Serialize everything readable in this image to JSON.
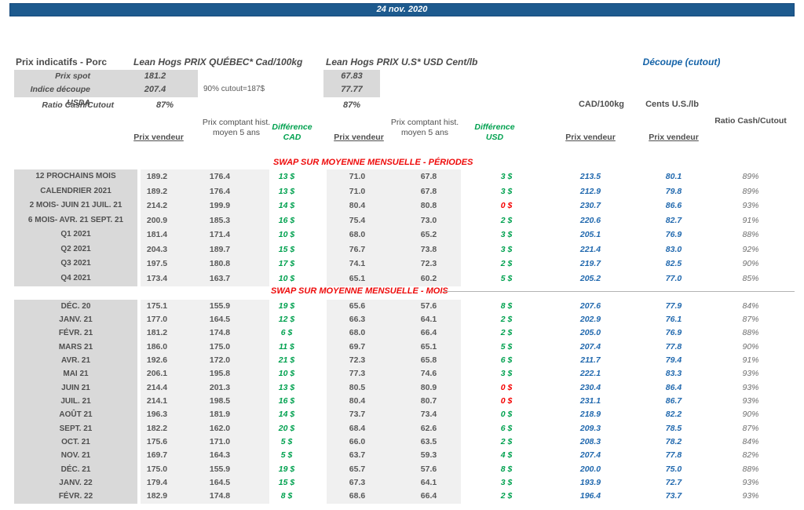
{
  "banner": {
    "date": "24 nov. 2020"
  },
  "top": {
    "title": "Prix indicatifs - Porc",
    "quebec_header": "Lean Hogs PRIX QUÉBEC* Cad/100kg",
    "us_header": "Lean Hogs PRIX U.S* USD Cent/lb",
    "cutout_header": "Découpe (cutout)",
    "spot_label": "Prix spot",
    "spot_cad": "181.2",
    "spot_usd": "67.83",
    "indice_label": "Indice découpe USDA",
    "indice_cad": "207.4",
    "indice_usd": "77.77",
    "ratio_label": "Ratio Cash/Cutout",
    "ratio_cad": "87%",
    "ratio_usd": "87%",
    "cutout_note": "90% cutout=187$",
    "unit_cad": "CAD/100kg",
    "unit_us": "Cents U.S./lb"
  },
  "columns": {
    "prix_vendeur": "Prix vendeur",
    "prix_comptant": "Prix comptant hist. moyen 5 ans",
    "diff_cad": "Différence CAD",
    "diff_usd": "Différence USD",
    "ratio": "Ratio Cash/Cutout"
  },
  "colors": {
    "banner_bg": "#1d5a8e",
    "green_diff": "#00a14f",
    "red_diff": "#f40000",
    "blue_cutout": "#2068ae",
    "red_title": "#ee0a0a",
    "label_column_bg": "#d9d9d9",
    "data_band_bg": "#f0f0f0"
  },
  "sections": [
    {
      "title": "SWAP SUR MOYENNE MENSUELLE - PÉRIODES",
      "rows": [
        {
          "label": "12 PROCHAINS MOIS",
          "cad_v": "189.2",
          "cad_h": "176.4",
          "dc": "13 $",
          "dc_neg": false,
          "usd_v": "71.0",
          "usd_h": "67.8",
          "du": "3 $",
          "du_neg": false,
          "cut_cad": "213.5",
          "cut_us": "80.1",
          "ratio": "89%"
        },
        {
          "label": "CALENDRIER 2021",
          "cad_v": "189.2",
          "cad_h": "176.4",
          "dc": "13 $",
          "dc_neg": false,
          "usd_v": "71.0",
          "usd_h": "67.8",
          "du": "3 $",
          "du_neg": false,
          "cut_cad": "212.9",
          "cut_us": "79.8",
          "ratio": "89%"
        },
        {
          "label": "2 MOIS- JUIN 21 JUIL. 21",
          "cad_v": "214.2",
          "cad_h": "199.9",
          "dc": "14 $",
          "dc_neg": false,
          "usd_v": "80.4",
          "usd_h": "80.8",
          "du": "0 $",
          "du_neg": true,
          "cut_cad": "230.7",
          "cut_us": "86.6",
          "ratio": "93%"
        },
        {
          "label": "6 MOIS- AVR. 21 SEPT. 21",
          "cad_v": "200.9",
          "cad_h": "185.3",
          "dc": "16 $",
          "dc_neg": false,
          "usd_v": "75.4",
          "usd_h": "73.0",
          "du": "2 $",
          "du_neg": false,
          "cut_cad": "220.6",
          "cut_us": "82.7",
          "ratio": "91%"
        },
        {
          "label": "Q1 2021",
          "cad_v": "181.4",
          "cad_h": "171.4",
          "dc": "10 $",
          "dc_neg": false,
          "usd_v": "68.0",
          "usd_h": "65.2",
          "du": "3 $",
          "du_neg": false,
          "cut_cad": "205.1",
          "cut_us": "76.9",
          "ratio": "88%"
        },
        {
          "label": "Q2 2021",
          "cad_v": "204.3",
          "cad_h": "189.7",
          "dc": "15 $",
          "dc_neg": false,
          "usd_v": "76.7",
          "usd_h": "73.8",
          "du": "3 $",
          "du_neg": false,
          "cut_cad": "221.4",
          "cut_us": "83.0",
          "ratio": "92%"
        },
        {
          "label": "Q3 2021",
          "cad_v": "197.5",
          "cad_h": "180.8",
          "dc": "17 $",
          "dc_neg": false,
          "usd_v": "74.1",
          "usd_h": "72.3",
          "du": "2 $",
          "du_neg": false,
          "cut_cad": "219.7",
          "cut_us": "82.5",
          "ratio": "90%"
        },
        {
          "label": "Q4 2021",
          "cad_v": "173.4",
          "cad_h": "163.7",
          "dc": "10 $",
          "dc_neg": false,
          "usd_v": "65.1",
          "usd_h": "60.2",
          "du": "5 $",
          "du_neg": false,
          "cut_cad": "205.2",
          "cut_us": "77.0",
          "ratio": "85%"
        }
      ]
    },
    {
      "title": "SWAP SUR MOYENNE MENSUELLE - MOIS",
      "rows": [
        {
          "label": "DÉC. 20",
          "cad_v": "175.1",
          "cad_h": "155.9",
          "dc": "19 $",
          "dc_neg": false,
          "usd_v": "65.6",
          "usd_h": "57.6",
          "du": "8 $",
          "du_neg": false,
          "cut_cad": "207.6",
          "cut_us": "77.9",
          "ratio": "84%"
        },
        {
          "label": "JANV. 21",
          "cad_v": "177.0",
          "cad_h": "164.5",
          "dc": "12 $",
          "dc_neg": false,
          "usd_v": "66.3",
          "usd_h": "64.1",
          "du": "2 $",
          "du_neg": false,
          "cut_cad": "202.9",
          "cut_us": "76.1",
          "ratio": "87%"
        },
        {
          "label": "FÉVR. 21",
          "cad_v": "181.2",
          "cad_h": "174.8",
          "dc": "6 $",
          "dc_neg": false,
          "usd_v": "68.0",
          "usd_h": "66.4",
          "du": "2 $",
          "du_neg": false,
          "cut_cad": "205.0",
          "cut_us": "76.9",
          "ratio": "88%"
        },
        {
          "label": "MARS 21",
          "cad_v": "186.0",
          "cad_h": "175.0",
          "dc": "11 $",
          "dc_neg": false,
          "usd_v": "69.7",
          "usd_h": "65.1",
          "du": "5 $",
          "du_neg": false,
          "cut_cad": "207.4",
          "cut_us": "77.8",
          "ratio": "90%"
        },
        {
          "label": "AVR. 21",
          "cad_v": "192.6",
          "cad_h": "172.0",
          "dc": "21 $",
          "dc_neg": false,
          "usd_v": "72.3",
          "usd_h": "65.8",
          "du": "6 $",
          "du_neg": false,
          "cut_cad": "211.7",
          "cut_us": "79.4",
          "ratio": "91%"
        },
        {
          "label": "MAI 21",
          "cad_v": "206.1",
          "cad_h": "195.8",
          "dc": "10 $",
          "dc_neg": false,
          "usd_v": "77.3",
          "usd_h": "74.6",
          "du": "3 $",
          "du_neg": false,
          "cut_cad": "222.1",
          "cut_us": "83.3",
          "ratio": "93%"
        },
        {
          "label": "JUIN 21",
          "cad_v": "214.4",
          "cad_h": "201.3",
          "dc": "13 $",
          "dc_neg": false,
          "usd_v": "80.5",
          "usd_h": "80.9",
          "du": "0 $",
          "du_neg": true,
          "cut_cad": "230.4",
          "cut_us": "86.4",
          "ratio": "93%"
        },
        {
          "label": "JUIL. 21",
          "cad_v": "214.1",
          "cad_h": "198.5",
          "dc": "16 $",
          "dc_neg": false,
          "usd_v": "80.4",
          "usd_h": "80.7",
          "du": "0 $",
          "du_neg": true,
          "cut_cad": "231.1",
          "cut_us": "86.7",
          "ratio": "93%"
        },
        {
          "label": "AOÛT 21",
          "cad_v": "196.3",
          "cad_h": "181.9",
          "dc": "14 $",
          "dc_neg": false,
          "usd_v": "73.7",
          "usd_h": "73.4",
          "du": "0 $",
          "du_neg": false,
          "cut_cad": "218.9",
          "cut_us": "82.2",
          "ratio": "90%"
        },
        {
          "label": "SEPT. 21",
          "cad_v": "182.2",
          "cad_h": "162.0",
          "dc": "20 $",
          "dc_neg": false,
          "usd_v": "68.4",
          "usd_h": "62.6",
          "du": "6 $",
          "du_neg": false,
          "cut_cad": "209.3",
          "cut_us": "78.5",
          "ratio": "87%"
        },
        {
          "label": "OCT. 21",
          "cad_v": "175.6",
          "cad_h": "171.0",
          "dc": "5 $",
          "dc_neg": false,
          "usd_v": "66.0",
          "usd_h": "63.5",
          "du": "2 $",
          "du_neg": false,
          "cut_cad": "208.3",
          "cut_us": "78.2",
          "ratio": "84%"
        },
        {
          "label": "NOV. 21",
          "cad_v": "169.7",
          "cad_h": "164.3",
          "dc": "5 $",
          "dc_neg": false,
          "usd_v": "63.7",
          "usd_h": "59.3",
          "du": "4 $",
          "du_neg": false,
          "cut_cad": "207.4",
          "cut_us": "77.8",
          "ratio": "82%"
        },
        {
          "label": "DÉC. 21",
          "cad_v": "175.0",
          "cad_h": "155.9",
          "dc": "19 $",
          "dc_neg": false,
          "usd_v": "65.7",
          "usd_h": "57.6",
          "du": "8 $",
          "du_neg": false,
          "cut_cad": "200.0",
          "cut_us": "75.0",
          "ratio": "88%"
        },
        {
          "label": "JANV. 22",
          "cad_v": "179.4",
          "cad_h": "164.5",
          "dc": "15 $",
          "dc_neg": false,
          "usd_v": "67.3",
          "usd_h": "64.1",
          "du": "3 $",
          "du_neg": false,
          "cut_cad": "193.9",
          "cut_us": "72.7",
          "ratio": "93%"
        },
        {
          "label": "FÉVR. 22",
          "cad_v": "182.9",
          "cad_h": "174.8",
          "dc": "8 $",
          "dc_neg": false,
          "usd_v": "68.6",
          "usd_h": "66.4",
          "du": "2 $",
          "du_neg": false,
          "cut_cad": "196.4",
          "cut_us": "73.7",
          "ratio": "93%"
        }
      ]
    }
  ]
}
